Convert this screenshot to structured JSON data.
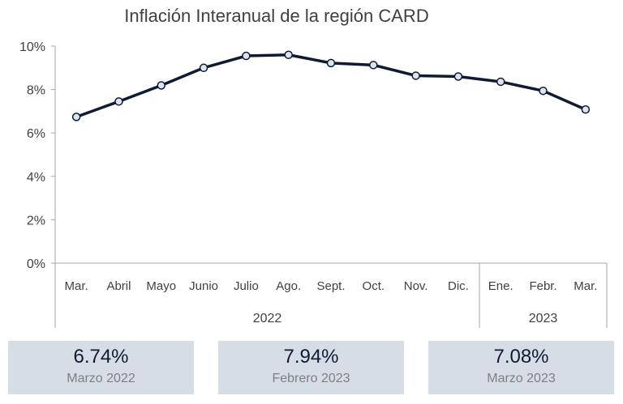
{
  "chart_data": {
    "type": "line",
    "title": "Inflación Interanual de la región CARD",
    "categories": [
      "Mar.",
      "Abril",
      "Mayo",
      "Junio",
      "Julio",
      "Ago.",
      "Sept.",
      "Oct.",
      "Nov.",
      "Dic.",
      "Ene.",
      "Febr.",
      "Mar."
    ],
    "year_groups": [
      {
        "label": "2022",
        "count": 10
      },
      {
        "label": "2023",
        "count": 3
      }
    ],
    "series": [
      {
        "values": [
          6.74,
          7.45,
          8.19,
          9.0,
          9.55,
          9.6,
          9.22,
          9.13,
          8.64,
          8.6,
          8.36,
          7.94,
          7.08
        ]
      }
    ],
    "ylim": [
      0,
      10
    ],
    "yticks": [
      "0%",
      "2%",
      "4%",
      "6%",
      "8%",
      "10%"
    ],
    "ytick_values": [
      0,
      2,
      4,
      6,
      8,
      10
    ],
    "grid": false,
    "line_color": "#0f1b33",
    "marker_fill": "#dce4f2"
  },
  "cards": [
    {
      "value": "6.74%",
      "label": "Marzo 2022"
    },
    {
      "value": "7.94%",
      "label": "Febrero 2023"
    },
    {
      "value": "7.08%",
      "label": "Marzo 2023"
    }
  ],
  "colors": {
    "card_bg": "#d7dde6",
    "card_value": "#0f1b33",
    "card_label": "#7f7f7f"
  }
}
